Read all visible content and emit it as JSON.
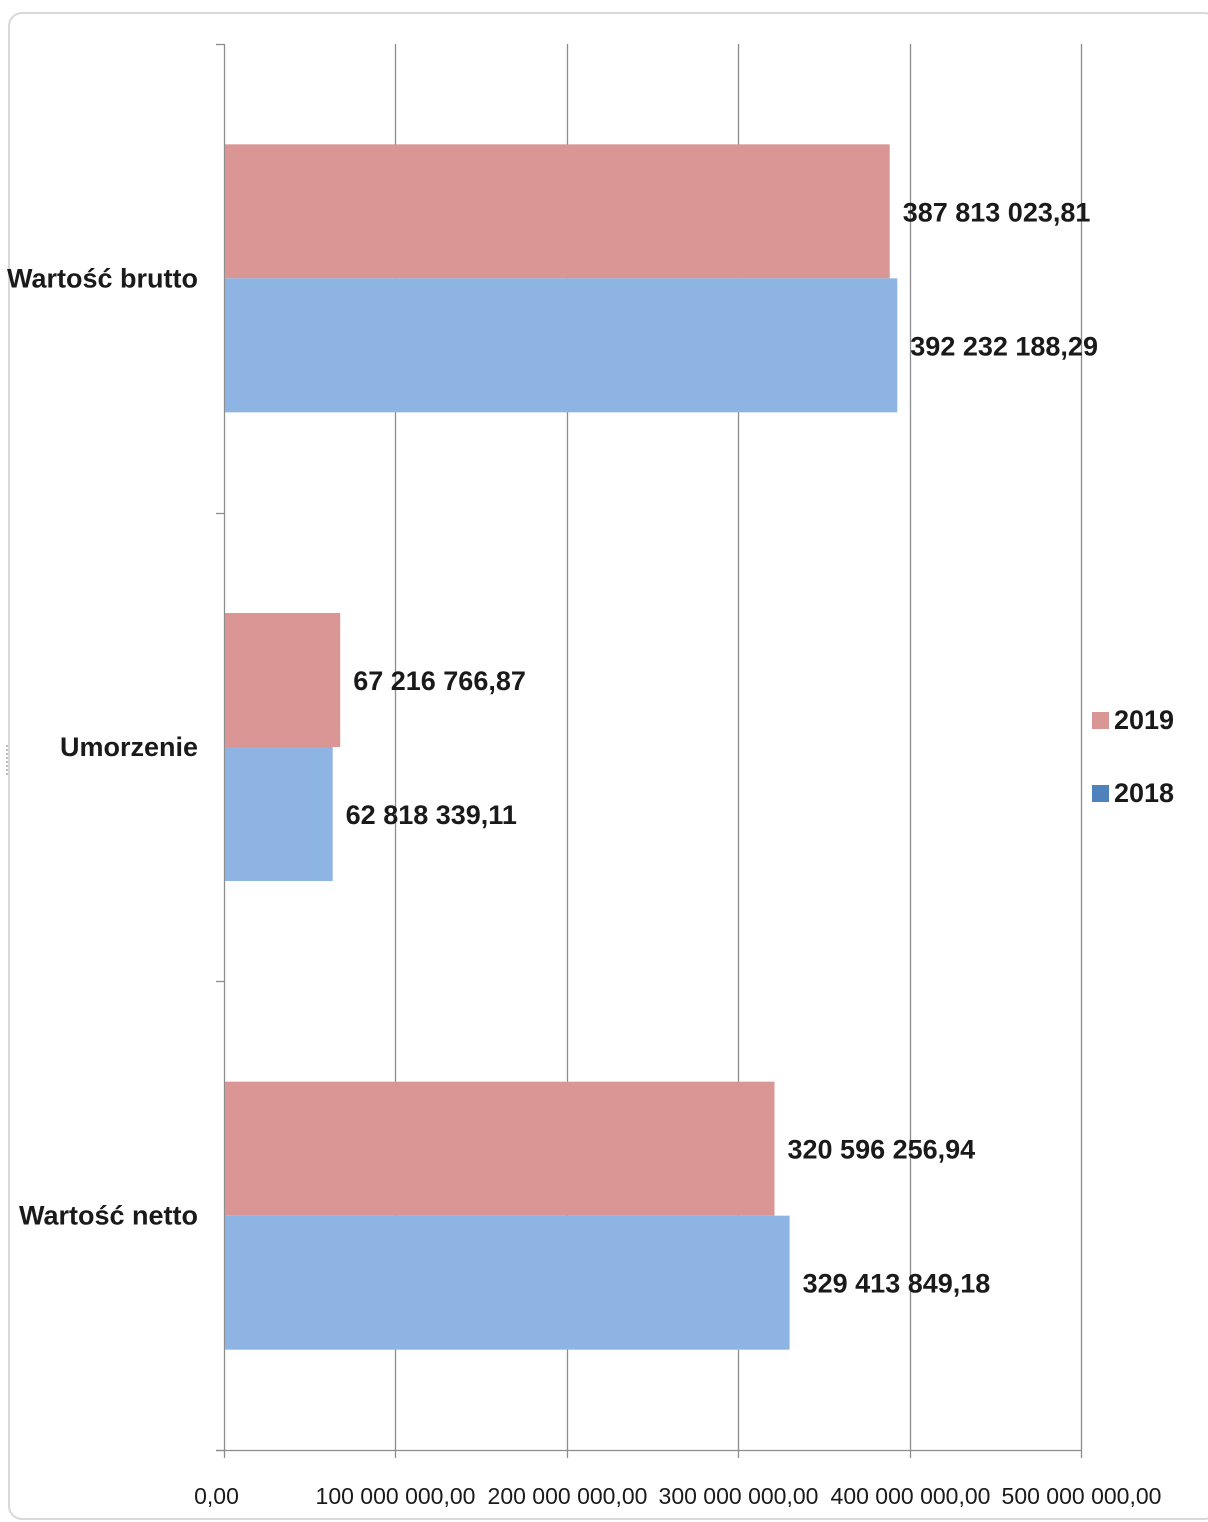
{
  "chart_data": {
    "type": "bar",
    "orientation": "horizontal",
    "categories": [
      "Wartość brutto",
      "Umorzenie",
      "Wartość netto"
    ],
    "series": [
      {
        "name": "2019",
        "color": "#d99694",
        "values": [
          387813023.81,
          67216766.87,
          320596256.94
        ],
        "labels": [
          "387 813 023,81",
          "67 216 766,87",
          "320 596 256,94"
        ]
      },
      {
        "name": "2018",
        "color": "#8eb4e3",
        "values": [
          392232188.29,
          62818339.11,
          329413849.18
        ],
        "labels": [
          "392 232 188,29",
          "62 818 339,11",
          "329 413 849,18"
        ]
      }
    ],
    "legend_entries": [
      {
        "name": "2019",
        "color": "#d99694"
      },
      {
        "name": "2018",
        "color": "#4f81bd"
      }
    ],
    "xlim": [
      0,
      500000000
    ],
    "x_ticks": [
      0,
      100000000,
      200000000,
      300000000,
      400000000,
      500000000
    ],
    "x_tick_labels": [
      "0,00",
      "100 000 000,00",
      "200 000 000,00",
      "300 000 000,00",
      "400 000 000,00",
      "500 000 000,00"
    ],
    "grid": "vertical",
    "legend_position": "right",
    "title": "",
    "xlabel": "",
    "ylabel": ""
  }
}
